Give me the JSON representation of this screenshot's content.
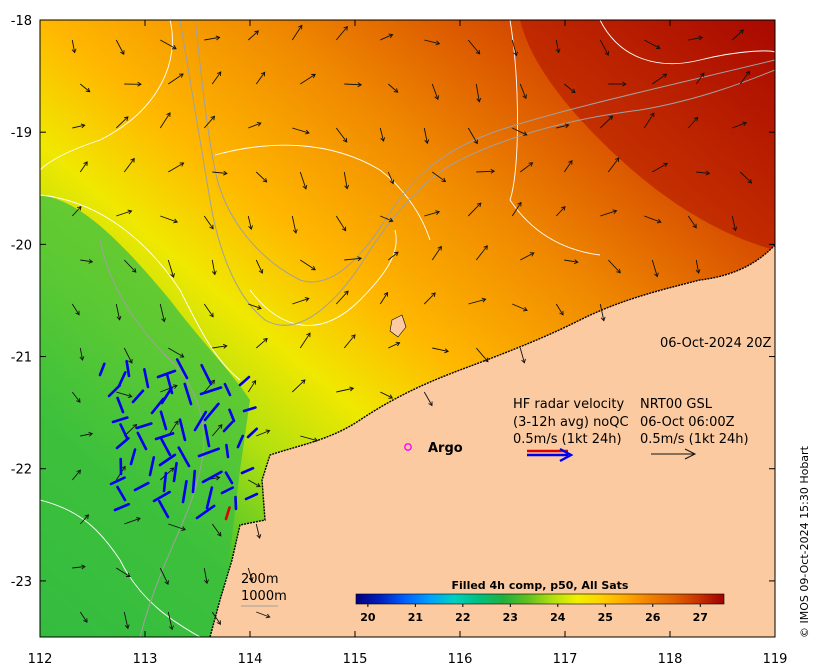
{
  "map": {
    "lon_range": [
      112,
      119
    ],
    "lat_range": [
      -23.5,
      -18
    ],
    "lon_ticks": [
      112,
      113,
      114,
      115,
      116,
      117,
      118,
      119
    ],
    "lat_ticks": [
      -18,
      -19,
      -20,
      -21,
      -22,
      -23
    ],
    "lon_tick_labels": [
      "112",
      "113",
      "114",
      "115",
      "116",
      "117",
      "118",
      "119"
    ],
    "lat_tick_labels": [
      "-18",
      "-19",
      "-20",
      "-21",
      "-22",
      "-23"
    ]
  },
  "timestamp": "06-Oct-2024 20Z",
  "legend": {
    "hf_line1": "HF radar velocity",
    "hf_line2": "(3-12h avg) noQC",
    "hf_line3": "0.5m/s (1kt 24h)",
    "gsl_line1": "NRT00 GSL",
    "gsl_line2": "06-Oct 06:00Z",
    "gsl_line3": "0.5m/s (1kt 24h)",
    "argo_label": "Argo"
  },
  "isobaths": {
    "label_200": "200m",
    "label_1000": "1000m"
  },
  "colorbar": {
    "title": "Filled 4h comp, p50, All Sats",
    "min": 19.75,
    "max": 27.5,
    "ticks": [
      "20",
      "21",
      "22",
      "23",
      "24",
      "25",
      "26",
      "27"
    ],
    "colors": [
      "#000080",
      "#0020c0",
      "#0060ff",
      "#00a0ff",
      "#00d0c0",
      "#00c080",
      "#20b040",
      "#60c020",
      "#b0e010",
      "#f0f000",
      "#ffd000",
      "#ffa800",
      "#f08000",
      "#e06000",
      "#c83000",
      "#a00000"
    ]
  },
  "credit": "© IMOS 09-Oct-2024 15:30 Hobart",
  "colors": {
    "land": "#fbcaa0",
    "hf_radar": "#0000ee",
    "hf_radar_low": "#dd0000",
    "gsl_arrow": "#111111",
    "argo": "#ff00ff",
    "contour": "#ffffff"
  }
}
